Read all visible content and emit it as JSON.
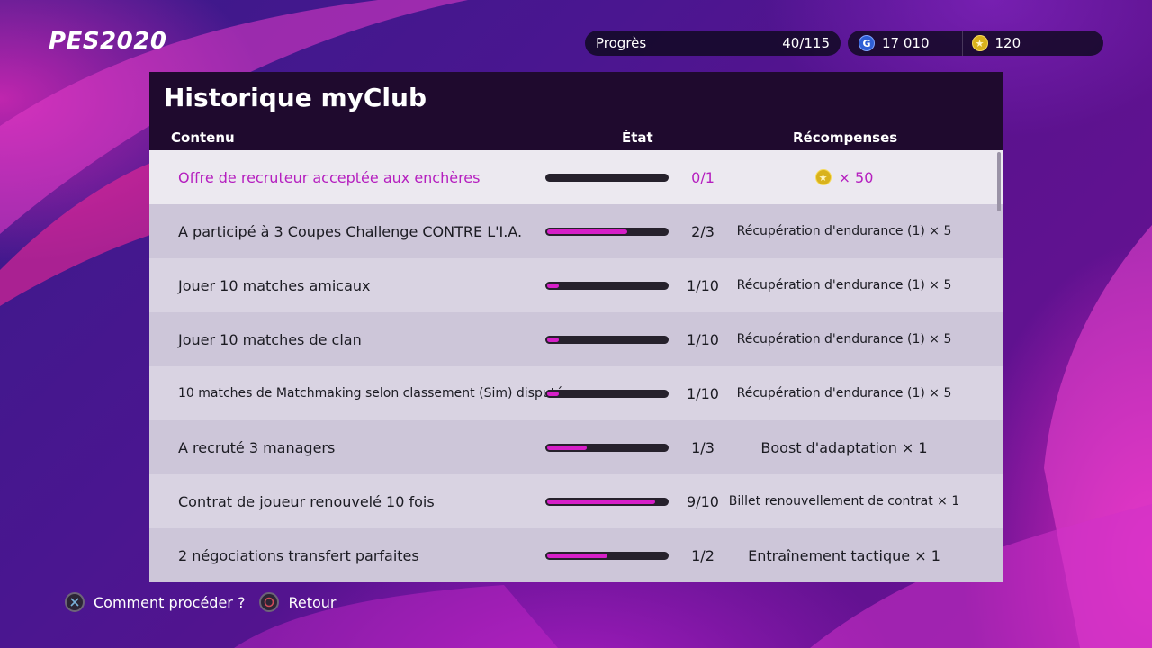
{
  "logo": "PES2020",
  "hud": {
    "progress_label": "Progrès",
    "progress_value": "40/115",
    "gp_icon": "G",
    "gp_value": "17 010",
    "coins_value": "120"
  },
  "panel": {
    "title": "Historique myClub",
    "columns": {
      "content": "Contenu",
      "state": "État",
      "rewards": "Récompenses"
    }
  },
  "rows": [
    {
      "label": "Offre de recruteur acceptée aux enchères",
      "state": "0/1",
      "progress": 0,
      "reward": "× 50",
      "reward_icon": "coin-star-icon"
    },
    {
      "label": "A participé à 3 Coupes Challenge CONTRE L'I.A.",
      "state": "2/3",
      "progress": 0.67,
      "reward": "Récupération d'endurance (1) × 5"
    },
    {
      "label": "Jouer 10 matches amicaux",
      "state": "1/10",
      "progress": 0.1,
      "reward": "Récupération d'endurance (1) × 5"
    },
    {
      "label": "Jouer 10 matches de clan",
      "state": "1/10",
      "progress": 0.1,
      "reward": "Récupération d'endurance (1) × 5"
    },
    {
      "label": "10 matches de Matchmaking selon classement (Sim) disputés",
      "state": "1/10",
      "progress": 0.1,
      "reward": "Récupération d'endurance (1) × 5"
    },
    {
      "label": "A recruté 3 managers",
      "state": "1/3",
      "progress": 0.33,
      "reward": "Boost d'adaptation × 1"
    },
    {
      "label": "Contrat de joueur renouvelé 10 fois",
      "state": "9/10",
      "progress": 0.9,
      "reward": "Billet renouvellement de contrat × 1"
    },
    {
      "label": "2 négociations transfert parfaites",
      "state": "1/2",
      "progress": 0.5,
      "reward": "Entraînement tactique × 1"
    }
  ],
  "footer": {
    "help_label": "Comment procéder ?",
    "back_label": "Retour"
  },
  "colors": {
    "accent": "#d61fc8",
    "panel_header": "#1f0a2e"
  }
}
